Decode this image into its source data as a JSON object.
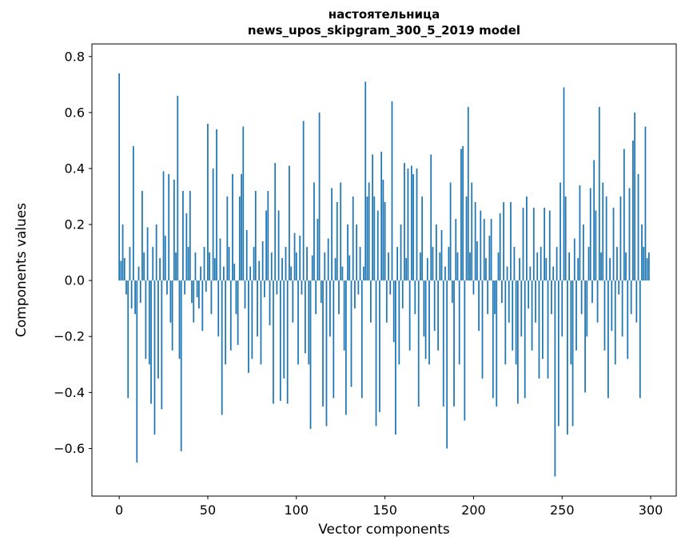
{
  "chart_data": {
    "type": "bar",
    "title": "настоятельница",
    "subtitle": "news_upos_skipgram_300_5_2019 model",
    "xlabel": "Vector components",
    "ylabel": "Components values",
    "x_ticks": [
      0,
      50,
      100,
      150,
      200,
      250,
      300
    ],
    "y_ticks": [
      -0.6,
      -0.4,
      -0.2,
      0.0,
      0.2,
      0.4,
      0.6,
      0.8
    ],
    "xlim": [
      -15.4,
      314.4
    ],
    "ylim": [
      -0.77,
      0.845
    ],
    "bar_color": "#1f77b4",
    "axis_color": "#000000",
    "grid": false,
    "legend": null,
    "n_components": 300,
    "values": [
      0.74,
      0.07,
      0.2,
      0.08,
      -0.05,
      -0.42,
      0.12,
      -0.1,
      0.48,
      -0.12,
      -0.65,
      0.05,
      -0.08,
      0.32,
      0.1,
      -0.28,
      0.19,
      -0.3,
      -0.44,
      0.12,
      -0.55,
      0.2,
      -0.35,
      0.08,
      -0.46,
      0.39,
      0.16,
      -0.05,
      0.38,
      -0.15,
      -0.25,
      0.36,
      0.1,
      0.66,
      -0.28,
      -0.61,
      0.32,
      -0.05,
      0.24,
      0.12,
      0.32,
      -0.08,
      -0.15,
      0.1,
      -0.06,
      -0.1,
      0.05,
      -0.18,
      0.12,
      -0.04,
      0.56,
      0.1,
      -0.12,
      0.4,
      0.08,
      0.54,
      -0.2,
      0.15,
      -0.48,
      0.05,
      -0.3,
      0.3,
      0.12,
      -0.25,
      0.38,
      0.06,
      -0.12,
      -0.23,
      0.3,
      0.38,
      0.55,
      -0.1,
      0.18,
      -0.33,
      0.05,
      -0.28,
      0.12,
      0.32,
      -0.2,
      0.07,
      -0.3,
      0.14,
      -0.06,
      0.25,
      0.32,
      -0.16,
      0.1,
      -0.44,
      0.42,
      -0.05,
      0.25,
      -0.43,
      0.08,
      -0.35,
      0.12,
      -0.44,
      0.41,
      0.05,
      -0.15,
      0.17,
      0.1,
      -0.3,
      0.16,
      -0.05,
      0.57,
      -0.26,
      0.12,
      -0.3,
      -0.53,
      0.09,
      0.35,
      -0.12,
      0.22,
      0.6,
      -0.08,
      -0.45,
      0.1,
      -0.52,
      0.15,
      -0.2,
      0.33,
      -0.42,
      0.08,
      0.28,
      -0.12,
      0.35,
      0.05,
      -0.25,
      -0.48,
      0.2,
      0.09,
      -0.38,
      0.3,
      -0.1,
      0.2,
      -0.05,
      0.12,
      -0.42,
      0.05,
      0.71,
      0.3,
      0.35,
      -0.15,
      0.45,
      0.3,
      -0.52,
      0.25,
      -0.47,
      0.46,
      0.36,
      0.28,
      -0.15,
      0.1,
      -0.05,
      0.64,
      -0.22,
      -0.55,
      0.12,
      -0.3,
      0.2,
      -0.1,
      0.42,
      0.08,
      0.4,
      -0.25,
      0.41,
      0.38,
      -0.12,
      0.4,
      -0.45,
      0.1,
      0.3,
      -0.2,
      -0.28,
      0.08,
      -0.3,
      0.45,
      0.12,
      -0.18,
      0.2,
      -0.25,
      0.1,
      0.18,
      -0.45,
      0.05,
      -0.6,
      0.12,
      0.35,
      -0.08,
      -0.45,
      0.22,
      0.1,
      -0.3,
      0.47,
      0.48,
      -0.5,
      0.3,
      0.62,
      0.1,
      0.35,
      -0.05,
      0.28,
      0.14,
      -0.18,
      0.25,
      -0.35,
      0.22,
      0.08,
      -0.12,
      0.16,
      0.22,
      -0.42,
      -0.12,
      -0.45,
      0.1,
      0.24,
      -0.08,
      0.28,
      -0.3,
      0.05,
      -0.15,
      0.28,
      -0.25,
      0.12,
      -0.3,
      -0.44,
      0.08,
      -0.2,
      0.26,
      -0.42,
      0.3,
      -0.1,
      0.05,
      -0.25,
      0.26,
      -0.15,
      0.1,
      -0.35,
      0.12,
      -0.28,
      0.26,
      0.08,
      -0.35,
      0.25,
      -0.12,
      0.05,
      -0.7,
      0.12,
      -0.52,
      0.35,
      -0.2,
      0.69,
      0.3,
      -0.55,
      0.1,
      -0.3,
      -0.52,
      0.15,
      -0.25,
      0.08,
      0.34,
      -0.12,
      0.2,
      -0.4,
      -0.2,
      0.12,
      0.33,
      -0.08,
      0.43,
      0.25,
      -0.15,
      0.62,
      0.1,
      0.35,
      -0.25,
      0.3,
      -0.42,
      0.08,
      -0.18,
      0.26,
      -0.3,
      0.12,
      -0.05,
      0.3,
      -0.2,
      0.47,
      0.1,
      -0.28,
      0.33,
      -0.12,
      0.5,
      0.6,
      -0.15,
      0.38,
      -0.42,
      0.2,
      0.12,
      0.55,
      0.08,
      0.1
    ]
  }
}
